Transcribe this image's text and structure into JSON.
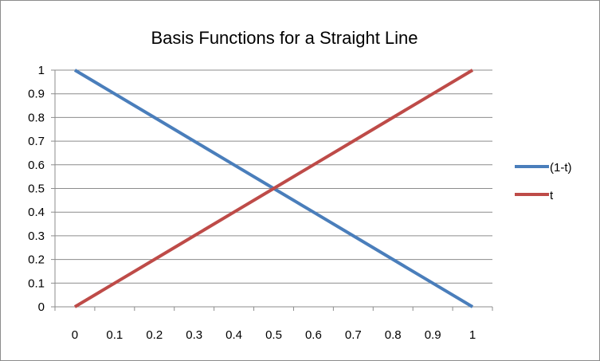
{
  "chart_data": {
    "type": "line",
    "title": "Basis Functions for a Straight Line",
    "xlabel": "",
    "ylabel": "",
    "categories": [
      "0",
      "0.1",
      "0.2",
      "0.3",
      "0.4",
      "0.5",
      "0.6",
      "0.7",
      "0.8",
      "0.9",
      "1"
    ],
    "x": [
      0,
      0.1,
      0.2,
      0.3,
      0.4,
      0.5,
      0.6,
      0.7,
      0.8,
      0.9,
      1
    ],
    "ylim": [
      0,
      1
    ],
    "yticks": [
      "0",
      "0.1",
      "0.2",
      "0.3",
      "0.4",
      "0.5",
      "0.6",
      "0.7",
      "0.8",
      "0.9",
      "1"
    ],
    "grid": "horizontal",
    "legend_position": "right",
    "series": [
      {
        "name": "(1-t)",
        "color": "#4a7ebb",
        "values": [
          1,
          0.9,
          0.8,
          0.7,
          0.6,
          0.5,
          0.4,
          0.3,
          0.2,
          0.1,
          0
        ]
      },
      {
        "name": "t",
        "color": "#be4b48",
        "values": [
          0,
          0.1,
          0.2,
          0.3,
          0.4,
          0.5,
          0.6,
          0.7,
          0.8,
          0.9,
          1
        ]
      }
    ]
  }
}
